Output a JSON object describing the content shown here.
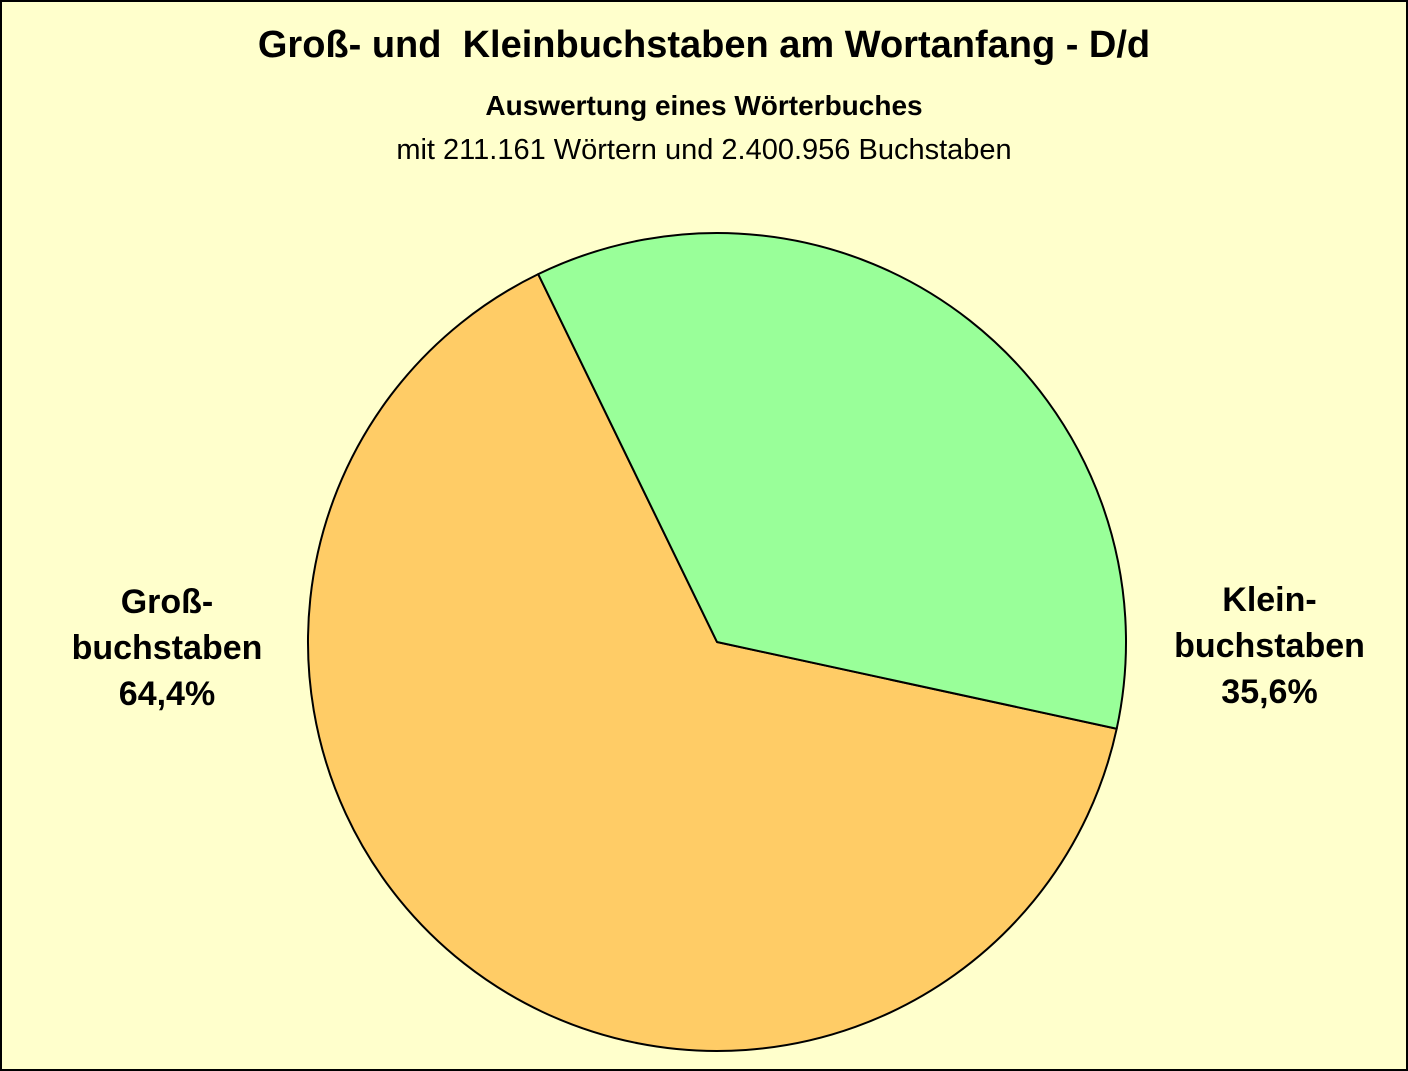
{
  "chart_data": {
    "type": "pie",
    "title": "Groß- und  Kleinbuchstaben am Wortanfang - D/d",
    "subtitle": "Auswertung eines Wörterbuches",
    "subtitle2": "mit 211.161 Wörtern und 2.400.956 Buchstaben",
    "background_color": "#ffffcc",
    "slices": [
      {
        "label_lines": [
          "Groß-",
          "buchstaben"
        ],
        "value": 64.4,
        "value_label": "64,4%",
        "color": "#ffcc66"
      },
      {
        "label_lines": [
          "Klein-",
          "buchstaben"
        ],
        "value": 35.6,
        "value_label": "35,6%",
        "color": "#99ff99"
      }
    ]
  }
}
